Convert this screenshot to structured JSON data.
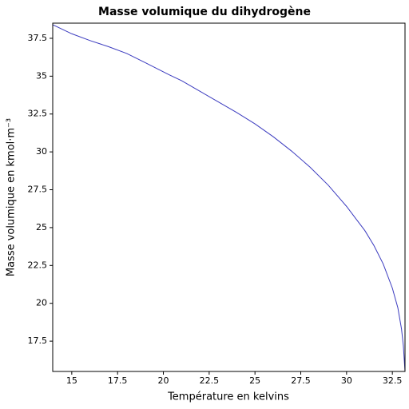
{
  "chart_data": {
    "type": "line",
    "title": "Masse volumique du dihydrogène",
    "x_label": "Température en kelvins",
    "y_label": "Masse volumique en kmol·m⁻³",
    "x": [
      13.96,
      15,
      16,
      17,
      18,
      19,
      20.3,
      21,
      22,
      23,
      24,
      25,
      26,
      27,
      28,
      29,
      30,
      30.5,
      31,
      31.5,
      32,
      32.5,
      32.8,
      33,
      33.1,
      33.19
    ],
    "series": [
      {
        "name": "Masse volumique",
        "color": "#3b3bbf",
        "values": [
          38.4,
          37.8,
          37.35,
          36.95,
          36.5,
          35.9,
          35.1,
          34.7,
          34.0,
          33.3,
          32.6,
          31.85,
          31.0,
          30.05,
          29.0,
          27.8,
          26.4,
          25.6,
          24.8,
          23.8,
          22.6,
          21.0,
          19.7,
          18.3,
          17.2,
          15.5
        ]
      }
    ],
    "xlim": [
      13.96,
      33.19
    ],
    "ylim": [
      15.5,
      38.5
    ],
    "xticks": [
      15,
      17.5,
      20,
      22.5,
      25,
      27.5,
      30,
      32.5
    ],
    "yticks": [
      17.5,
      20,
      22.5,
      25,
      27.5,
      30,
      32.5,
      35,
      37.5
    ],
    "grid": false
  }
}
